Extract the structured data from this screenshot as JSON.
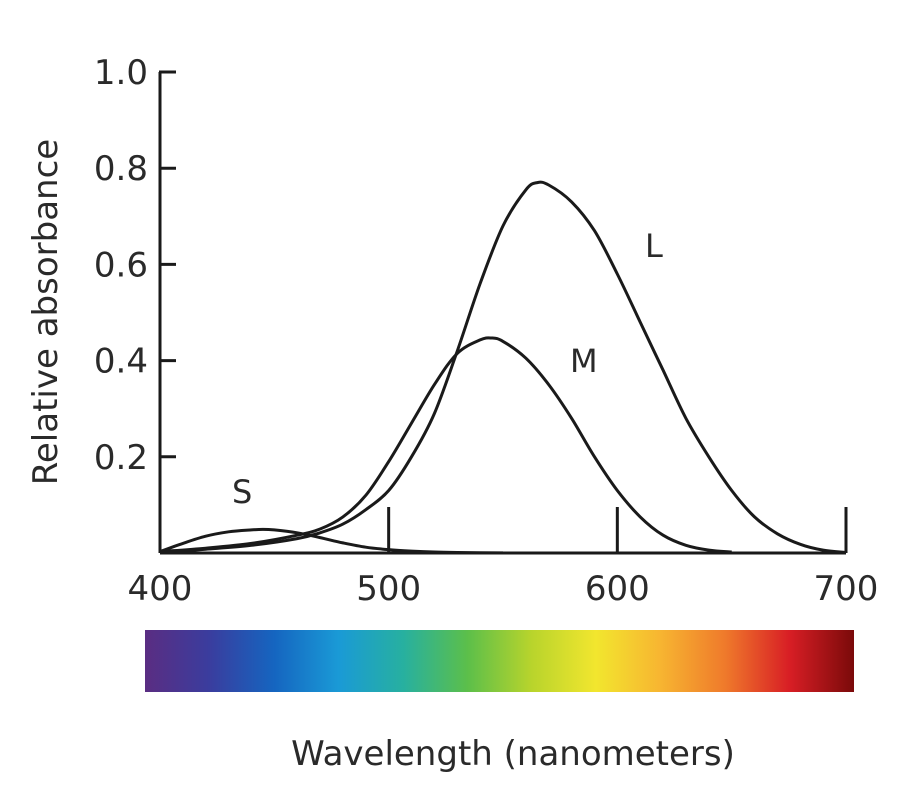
{
  "chart_data": {
    "type": "line",
    "title": "",
    "xlabel": "Wavelength (nanometers)",
    "ylabel": "Relative absorbance",
    "xlim": [
      400,
      700
    ],
    "ylim": [
      0,
      1.0
    ],
    "x_ticks": [
      "400",
      "500",
      "600",
      "700"
    ],
    "y_ticks": [
      "0.2",
      "0.4",
      "0.6",
      "0.8",
      "1.0"
    ],
    "grid": false,
    "legend": "none",
    "spectrum_bar": {
      "colors": [
        "#5a2d82",
        "#3a3d9e",
        "#1565c0",
        "#1a9ad6",
        "#27b0a0",
        "#5cbf4a",
        "#b8d42c",
        "#f2e62e",
        "#f7b531",
        "#ef7a2b",
        "#d81e25",
        "#7a0a0a"
      ]
    },
    "series": [
      {
        "name": "S",
        "x": [
          400,
          410,
          420,
          430,
          440,
          445,
          450,
          460,
          470,
          480,
          490,
          500,
          510,
          520,
          530,
          540,
          550
        ],
        "y": [
          0.003,
          0.02,
          0.035,
          0.044,
          0.048,
          0.049,
          0.048,
          0.042,
          0.032,
          0.021,
          0.012,
          0.007,
          0.004,
          0.002,
          0.001,
          0.0005,
          0.0003
        ]
      },
      {
        "name": "M",
        "x": [
          400,
          420,
          440,
          460,
          470,
          480,
          490,
          500,
          510,
          520,
          530,
          540,
          545,
          550,
          560,
          570,
          580,
          590,
          600,
          610,
          620,
          630,
          640,
          650
        ],
        "y": [
          0.003,
          0.01,
          0.02,
          0.037,
          0.05,
          0.075,
          0.12,
          0.19,
          0.27,
          0.35,
          0.415,
          0.443,
          0.447,
          0.44,
          0.405,
          0.35,
          0.28,
          0.2,
          0.13,
          0.075,
          0.037,
          0.016,
          0.006,
          0.002
        ]
      },
      {
        "name": "L",
        "x": [
          400,
          420,
          440,
          460,
          470,
          480,
          490,
          500,
          510,
          520,
          530,
          540,
          550,
          560,
          565,
          570,
          580,
          590,
          600,
          610,
          620,
          630,
          640,
          650,
          660,
          670,
          680,
          690,
          700
        ],
        "y": [
          0.002,
          0.008,
          0.016,
          0.03,
          0.042,
          0.06,
          0.09,
          0.13,
          0.2,
          0.29,
          0.42,
          0.56,
          0.68,
          0.755,
          0.77,
          0.765,
          0.73,
          0.67,
          0.58,
          0.48,
          0.38,
          0.28,
          0.2,
          0.13,
          0.075,
          0.04,
          0.018,
          0.006,
          0.001
        ]
      }
    ]
  }
}
